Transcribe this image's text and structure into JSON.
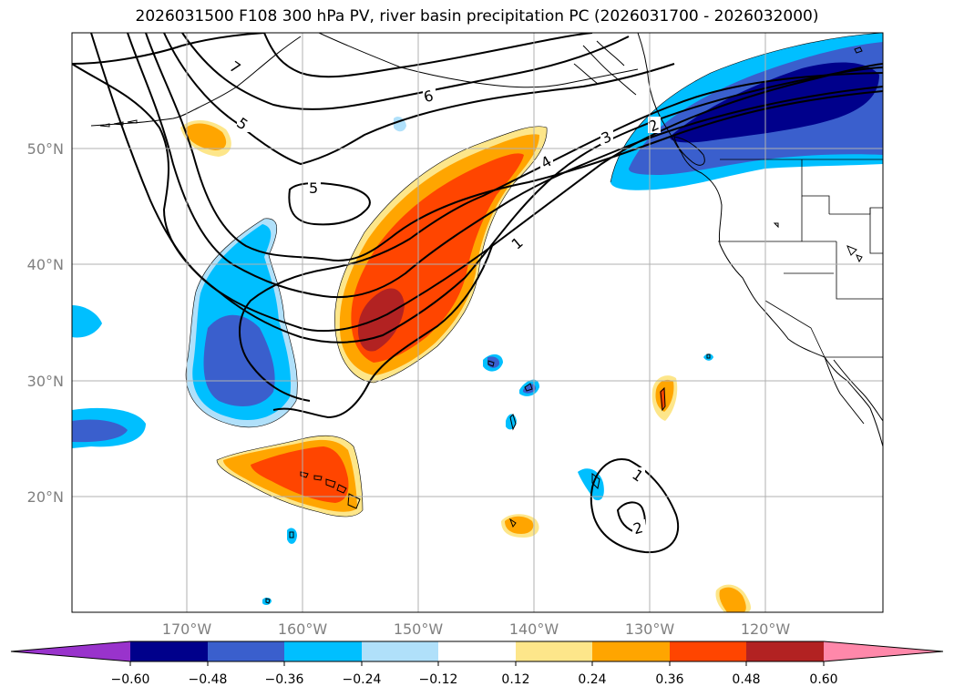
{
  "title": "2026031500 F108 300 hPa PV, river basin precipitation PC (2026031700 - 2026032000)",
  "map": {
    "lat_ticks": [
      "50°N",
      "40°N",
      "30°N",
      "20°N"
    ],
    "lon_ticks": [
      "170°W",
      "160°W",
      "150°W",
      "140°W",
      "130°W",
      "120°W"
    ],
    "contour_labels": [
      "7",
      "6",
      "5",
      "5",
      "4",
      "3",
      "2",
      "1",
      "1",
      "2"
    ],
    "tick_label_color": "#808080",
    "grid": true
  },
  "colorbar": {
    "colors": [
      "#9933cc",
      "#00008b",
      "#3a5fcd",
      "#00bfff",
      "#b0e0fa",
      "#ffffff",
      "#fde68a",
      "#ffa500",
      "#ff4500",
      "#b22222",
      "#ff88aa"
    ],
    "tick_labels": [
      "−0.60",
      "−0.48",
      "−0.36",
      "−0.24",
      "−0.12",
      "0.12",
      "0.24",
      "0.36",
      "0.48",
      "0.60"
    ],
    "extend": "both"
  }
}
